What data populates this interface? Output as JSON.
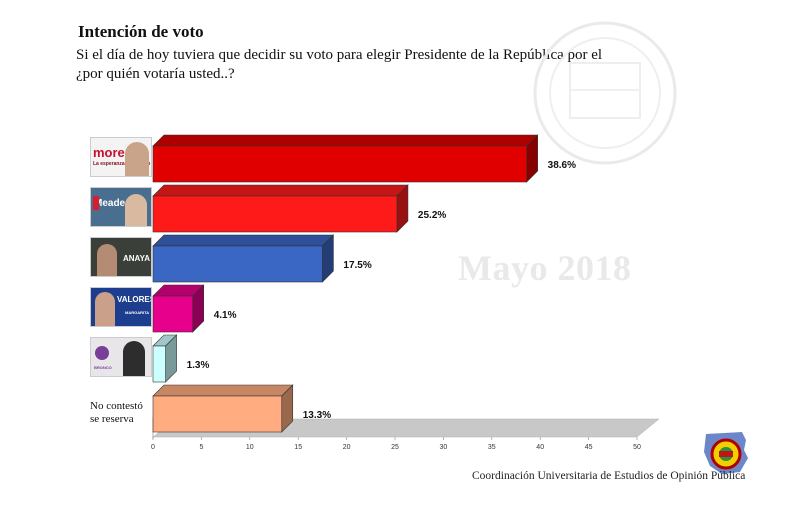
{
  "header": {
    "title": "Intención de voto",
    "question_line1": "Si el día de hoy tuviera que decidir su voto para elegir Presidente de la República por el",
    "question_line2": "¿por quién votaría usted..?"
  },
  "watermark": "Mayo 2018",
  "footer": "Coordinación Universitaria de Estudios de Opinión Pública",
  "candidates": [
    {
      "thumb_text": "morena",
      "thumb_subtext": "La esperanza de México",
      "bg": "#f2f2f2",
      "accent": "#c8102e"
    },
    {
      "thumb_text": "Meade",
      "bg": "#4a6e8f",
      "accent": "#d81e2c"
    },
    {
      "thumb_text": "ANAYA",
      "bg": "#3a3f3a",
      "accent": "#1b5aa6"
    },
    {
      "thumb_text": "VALORES",
      "thumb_subtext": "MARGARITA",
      "bg": "#1d3d8f",
      "accent": "#e0007a"
    },
    {
      "thumb_text": "BRONCO",
      "bg": "#e9e6ea",
      "accent": "#7a3d99"
    }
  ],
  "no_contesto": {
    "line1": "No contestó",
    "line2": "se reserva"
  },
  "chart_data": {
    "type": "bar",
    "orientation": "horizontal",
    "categories": [
      "morena",
      "Meade",
      "Anaya",
      "Margarita",
      "Bronco",
      "No contestó se reserva"
    ],
    "values": [
      38.6,
      25.2,
      17.5,
      4.1,
      1.3,
      13.3
    ],
    "value_labels": [
      "38.6%",
      "25.2%",
      "17.5%",
      "4.1%",
      "1.3%",
      "13.3%"
    ],
    "colors": [
      "#e00000",
      "#ff1a1a",
      "#3a66c4",
      "#e6008c",
      "#ccffff",
      "#ffad80"
    ],
    "xlim": [
      0,
      50
    ],
    "x_ticks": [
      "0",
      "5",
      "10",
      "15",
      "20",
      "25",
      "30",
      "35",
      "40",
      "45",
      "50"
    ],
    "grid": false,
    "three_d": true
  }
}
